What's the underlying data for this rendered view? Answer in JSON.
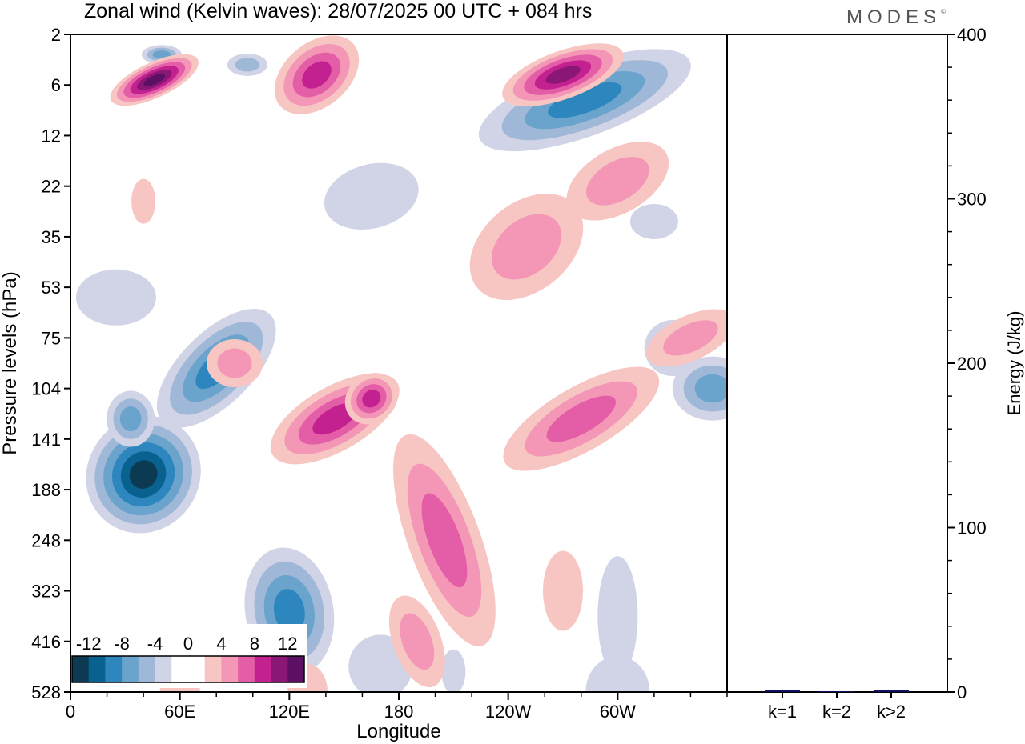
{
  "title": "Zonal wind (Kelvin waves):  28/07/2025  00 UTC  + 084 hrs",
  "logo": {
    "text": "MODES",
    "mark": "©"
  },
  "chart_data": [
    {
      "type": "heatmap",
      "title": "Zonal wind (Kelvin waves):  28/07/2025  00 UTC  + 084 hrs",
      "xlabel": "Longitude",
      "ylabel": "Pressure levels (hPa)",
      "x_ticks": [
        "0",
        "60E",
        "120E",
        "180",
        "120W",
        "60W"
      ],
      "x_tick_degrees": [
        0,
        60,
        120,
        180,
        240,
        300
      ],
      "xlim": [
        0,
        360
      ],
      "y_ticks": [
        "2",
        "6",
        "12",
        "22",
        "35",
        "53",
        "75",
        "104",
        "141",
        "188",
        "248",
        "323",
        "416",
        "528"
      ],
      "y_scale": "level index (top to bottom)",
      "grid": false,
      "colorbar": {
        "labels": [
          "-12",
          "-8",
          "-4",
          "0",
          "4",
          "8",
          "12"
        ],
        "colors": [
          "#0c3a52",
          "#08618e",
          "#2d86bd",
          "#6aa3cc",
          "#a0b8d8",
          "#d1d4e6",
          "#ffffff",
          "#ffffff",
          "#f7c6c3",
          "#f497b7",
          "#e45ea7",
          "#c3218f",
          "#8a1776",
          "#5c1064"
        ],
        "placement": "bottom-left"
      },
      "features": [
        {
          "sign": "negative",
          "level": "strong",
          "peak": "about -14",
          "lon_range": [
            20,
            70
          ],
          "pressure_range": [
            "104",
            "188"
          ]
        },
        {
          "sign": "negative",
          "level": "moderate",
          "lon_range": [
            110,
            140
          ],
          "pressure_range": [
            "188",
            "323"
          ]
        },
        {
          "sign": "negative",
          "level": "moderate",
          "lon_range": [
            250,
            315
          ],
          "pressure_range": [
            "2",
            "12"
          ]
        },
        {
          "sign": "positive",
          "level": "moderate",
          "lon_range": [
            110,
            175
          ],
          "pressure_range": [
            "75",
            "141"
          ]
        },
        {
          "sign": "positive",
          "level": "strong",
          "lon_range": [
            20,
            70
          ],
          "pressure_range": [
            "2",
            "6"
          ]
        },
        {
          "sign": "positive",
          "level": "moderate",
          "lon_range": [
            180,
            230
          ],
          "pressure_range": [
            "141",
            "416"
          ]
        }
      ]
    },
    {
      "type": "bar",
      "categories": [
        "k=1",
        "k=2",
        "k>2"
      ],
      "values": [
        1,
        0.5,
        1
      ],
      "ylabel": "Energy (J/kg)",
      "ylim": [
        0,
        400
      ],
      "y_ticks": [
        0,
        100,
        200,
        300,
        400
      ],
      "bar_color": "#101060",
      "axis_side": "right"
    }
  ]
}
